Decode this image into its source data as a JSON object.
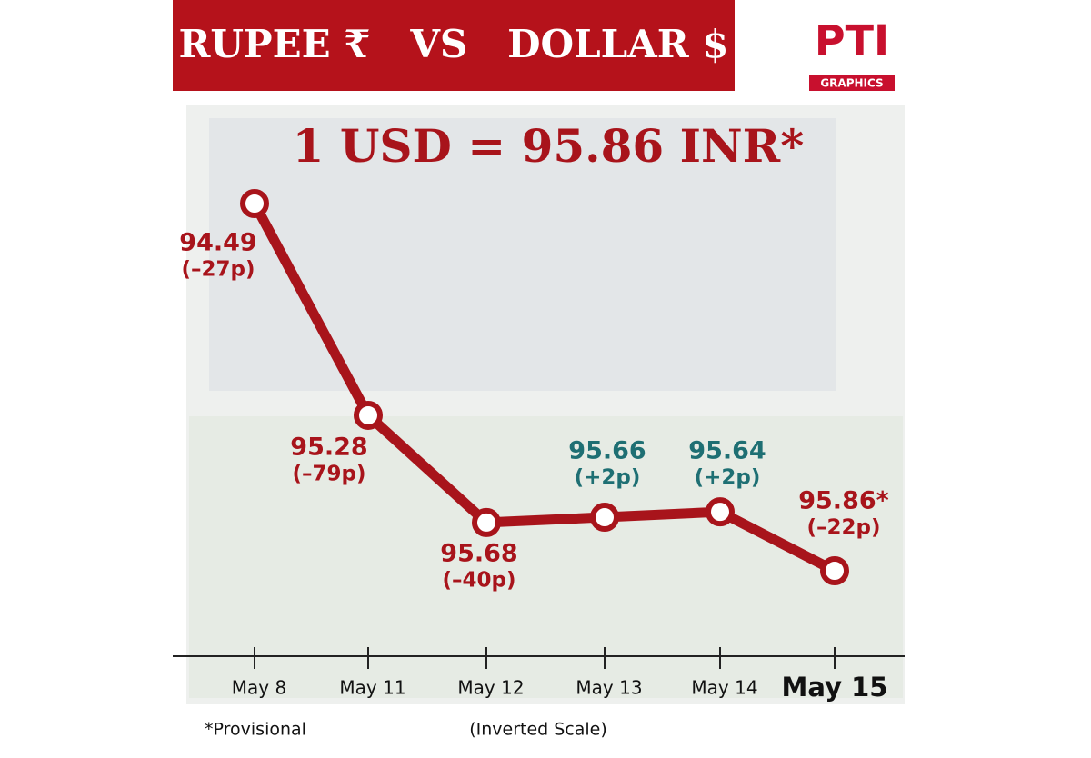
{
  "chart_data": {
    "type": "line",
    "title": "RUPEE ₹   VS   DOLLAR $",
    "logo": "PTI",
    "logo_subtitle": "GRAPHICS",
    "headline": "1 USD = 95.86 INR*",
    "categories": [
      "May 8",
      "May 11",
      "May 12",
      "May 13",
      "May 14",
      "May 15"
    ],
    "values": [
      94.49,
      95.28,
      95.68,
      95.66,
      95.64,
      95.86
    ],
    "value_labels": [
      "94.49",
      "95.28",
      "95.68",
      "95.66",
      "95.64",
      "95.86*"
    ],
    "change_labels": [
      "(–27p)",
      "(–79p)",
      "(–40p)",
      "(+2p)",
      "(+2p)",
      "(–22p)"
    ],
    "label_colors": [
      "#a8141b",
      "#a8141b",
      "#a8141b",
      "#1e6f73",
      "#1e6f73",
      "#a8141b"
    ],
    "color": "#a8141b",
    "inverted": true,
    "highlight_index": 5,
    "footnote": "*Provisional",
    "note": "(Inverted Scale)"
  }
}
